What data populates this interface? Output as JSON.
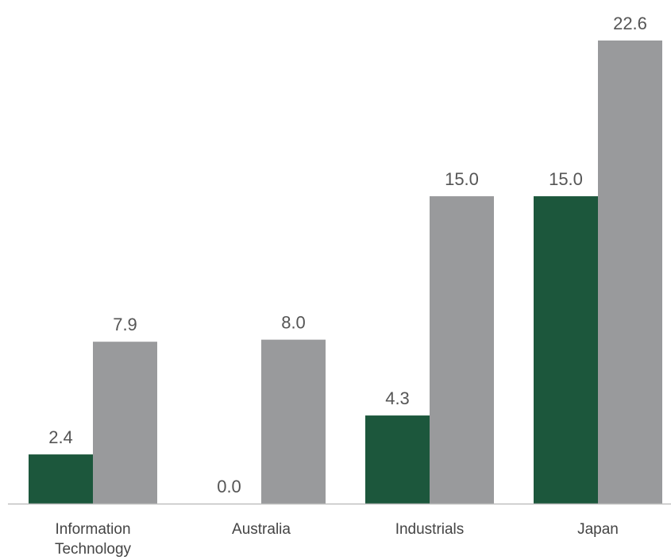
{
  "chart_data": {
    "type": "bar",
    "title": "",
    "xlabel": "",
    "ylabel": "",
    "categories": [
      [
        "Information",
        "Technology"
      ],
      [
        "Australia"
      ],
      [
        "Industrials"
      ],
      [
        "Japan"
      ]
    ],
    "series": [
      {
        "color": "#1c573c",
        "values": [
          2.4,
          0.0,
          4.3,
          15.0
        ],
        "labels": [
          "2.4",
          "0.0",
          "4.3",
          "15.0"
        ]
      },
      {
        "color": "#999a9c",
        "values": [
          7.9,
          8.0,
          15.0,
          22.6
        ],
        "labels": [
          "7.9",
          "8.0",
          "15.0",
          "22.6"
        ]
      }
    ],
    "ylim": [
      0,
      23.5
    ],
    "grid": false,
    "legend": "none",
    "axis_color": "#bfbfbf"
  }
}
